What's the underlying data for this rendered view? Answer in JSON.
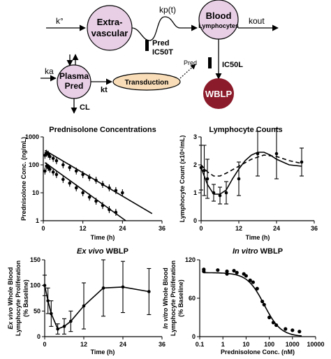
{
  "diagram": {
    "k0": "k°",
    "extravascular": "Extra-\nvascular",
    "kp": "kp(t)",
    "blood": "Blood",
    "lymphocytes": "Lymphocytes",
    "kout": "kout",
    "pred_top": "Pred",
    "ic50t": "IC50T",
    "ka": "ka",
    "plasma_pred": "Plasma\nPred",
    "kt": "kt",
    "cl": "CL",
    "transduction": "Transduction",
    "pred_mid": "Pred",
    "ic50l": "IC50L",
    "wblp": "WBLP",
    "colors": {
      "bubble": "#e8cfe6",
      "transduction": "#f8ddb8",
      "wblp": "#8b1a2a"
    }
  },
  "chart_data": [
    {
      "id": "prednisolone",
      "type": "scatter",
      "title": "Prednisolone Concentrations",
      "title_style": "normal",
      "xlabel": "Time (h)",
      "ylabel": "Prednisolone Conc. (ng/mL)",
      "xlim": [
        0,
        36
      ],
      "ylim": [
        1,
        1000
      ],
      "yscale": "log",
      "xticks": [
        "0",
        "12",
        "24",
        "36"
      ],
      "yticks": [
        "1",
        "10",
        "100",
        "1000"
      ],
      "series": [
        {
          "values": [
            [
              0.5,
              220
            ],
            [
              1,
              260
            ],
            [
              1.5,
              240
            ],
            [
              2,
              200
            ],
            [
              3,
              170
            ],
            [
              4,
              140
            ],
            [
              6,
              100
            ],
            [
              8,
              80
            ],
            [
              10,
              60
            ],
            [
              12,
              45
            ],
            [
              14,
              35
            ],
            [
              16,
              28
            ],
            [
              18,
              20
            ],
            [
              20,
              15
            ],
            [
              22,
              12
            ],
            [
              24,
              10
            ]
          ]
        },
        {
          "values": [
            [
              0.5,
              60
            ],
            [
              1,
              90
            ],
            [
              1.5,
              80
            ],
            [
              2,
              70
            ],
            [
              3,
              55
            ],
            [
              4,
              45
            ],
            [
              6,
              30
            ],
            [
              8,
              22
            ],
            [
              10,
              15
            ],
            [
              12,
              10
            ],
            [
              14,
              7
            ],
            [
              16,
              5
            ],
            [
              18,
              3.5
            ],
            [
              20,
              2.5
            ],
            [
              22,
              2
            ]
          ]
        }
      ],
      "fit_lines": [
        {
          "values": [
            [
              0.5,
              330
            ],
            [
              33,
              1.8
            ]
          ]
        },
        {
          "values": [
            [
              0.5,
              120
            ],
            [
              25,
              1
            ]
          ]
        }
      ]
    },
    {
      "id": "lymphocytes",
      "type": "line",
      "title": "Lymphocyte Counts",
      "title_style": "normal",
      "xlabel": "Time (h)",
      "ylabel": "Lymphocyte Count (x10⁶/mL)",
      "xlim": [
        0,
        36
      ],
      "ylim": [
        0,
        3
      ],
      "xticks": [
        "0",
        "12",
        "24",
        "36"
      ],
      "yticks": [
        "0",
        "1",
        "2",
        "3"
      ],
      "points": [
        {
          "x": 0,
          "y": 1.9,
          "err": 0.8
        },
        {
          "x": 1,
          "y": 1.8,
          "err": 0.9
        },
        {
          "x": 2,
          "y": 1.5,
          "err": 0.7
        },
        {
          "x": 4,
          "y": 1.0,
          "err": 0.3
        },
        {
          "x": 6,
          "y": 0.9,
          "err": 0.3
        },
        {
          "x": 8,
          "y": 1.0,
          "err": 0.4
        },
        {
          "x": 12,
          "y": 1.5,
          "err": 0.6
        },
        {
          "x": 18,
          "y": 2.4,
          "err": 0.8
        },
        {
          "x": 24,
          "y": 2.4,
          "err": 0.9
        },
        {
          "x": 32,
          "y": 2.1,
          "err": 0.5
        }
      ],
      "solid_fit": [
        [
          0,
          1.9
        ],
        [
          2,
          1.3
        ],
        [
          4,
          0.95
        ],
        [
          6,
          0.95
        ],
        [
          8,
          1.1
        ],
        [
          10,
          1.5
        ],
        [
          12,
          1.85
        ],
        [
          14,
          2.15
        ],
        [
          16,
          2.35
        ],
        [
          18,
          2.45
        ],
        [
          20,
          2.45
        ],
        [
          22,
          2.35
        ],
        [
          24,
          2.2
        ],
        [
          28,
          2.0
        ],
        [
          32,
          1.95
        ]
      ],
      "dashed_fit": [
        [
          0,
          2.0
        ],
        [
          2,
          1.75
        ],
        [
          4,
          1.6
        ],
        [
          6,
          1.6
        ],
        [
          8,
          1.7
        ],
        [
          12,
          1.95
        ],
        [
          16,
          2.2
        ],
        [
          20,
          2.35
        ],
        [
          24,
          2.3
        ],
        [
          28,
          2.15
        ],
        [
          32,
          2.05
        ]
      ]
    },
    {
      "id": "exvivo",
      "type": "line",
      "title_italic": "Ex vivo",
      "title_rest": " WBLP",
      "xlabel": "Time (h)",
      "ylabel_italic": "Ex vivo",
      "ylabel_rest": " Whole Blood",
      "ylabel2": "Lymphocyte Proliferation",
      "ylabel3": "(% Baseline)",
      "xlim": [
        0,
        36
      ],
      "ylim": [
        0,
        150
      ],
      "xticks": [
        "0",
        "12",
        "24",
        "36"
      ],
      "yticks": [
        "0",
        "50",
        "100",
        "150"
      ],
      "points": [
        {
          "x": 0,
          "y": 100,
          "err": 20
        },
        {
          "x": 1,
          "y": 70,
          "err": 25
        },
        {
          "x": 2,
          "y": 45,
          "err": 25
        },
        {
          "x": 4,
          "y": 15,
          "err": 10
        },
        {
          "x": 6,
          "y": 20,
          "err": 15
        },
        {
          "x": 8,
          "y": 30,
          "err": 20
        },
        {
          "x": 12,
          "y": 60,
          "err": 45
        },
        {
          "x": 18,
          "y": 95,
          "err": 55
        },
        {
          "x": 24,
          "y": 97,
          "err": 50
        },
        {
          "x": 32,
          "y": 88,
          "err": 45
        }
      ]
    },
    {
      "id": "invitro",
      "type": "scatter",
      "title_italic": "In vitro",
      "title_rest": " WBLP",
      "xlabel": "Prednisolone Conc. (nM)",
      "ylabel_italic": "In vitro",
      "ylabel_rest": " Whole Blood",
      "ylabel2": "Lymphocyte Proliferation",
      "ylabel3": "(% Baseline)",
      "xscale": "log",
      "xlim": [
        0.1,
        10000
      ],
      "ylim": [
        0,
        120
      ],
      "xticks": [
        "0.1",
        "1",
        "10",
        "100",
        "1000",
        "10000"
      ],
      "yticks": [
        "0",
        "60",
        "120"
      ],
      "points": [
        [
          0.15,
          105
        ],
        [
          0.15,
          102
        ],
        [
          0.6,
          104
        ],
        [
          1.5,
          102
        ],
        [
          1.5,
          98
        ],
        [
          3,
          103
        ],
        [
          4,
          100
        ],
        [
          8,
          98
        ],
        [
          10,
          95
        ],
        [
          15,
          88
        ],
        [
          20,
          85
        ],
        [
          30,
          75
        ],
        [
          50,
          55
        ],
        [
          60,
          50
        ],
        [
          100,
          30
        ],
        [
          150,
          22
        ],
        [
          200,
          18
        ],
        [
          500,
          12
        ],
        [
          1000,
          10
        ],
        [
          2000,
          8
        ]
      ],
      "fit": {
        "top": 100,
        "ic50": 60,
        "hill": 1.2
      }
    }
  ]
}
